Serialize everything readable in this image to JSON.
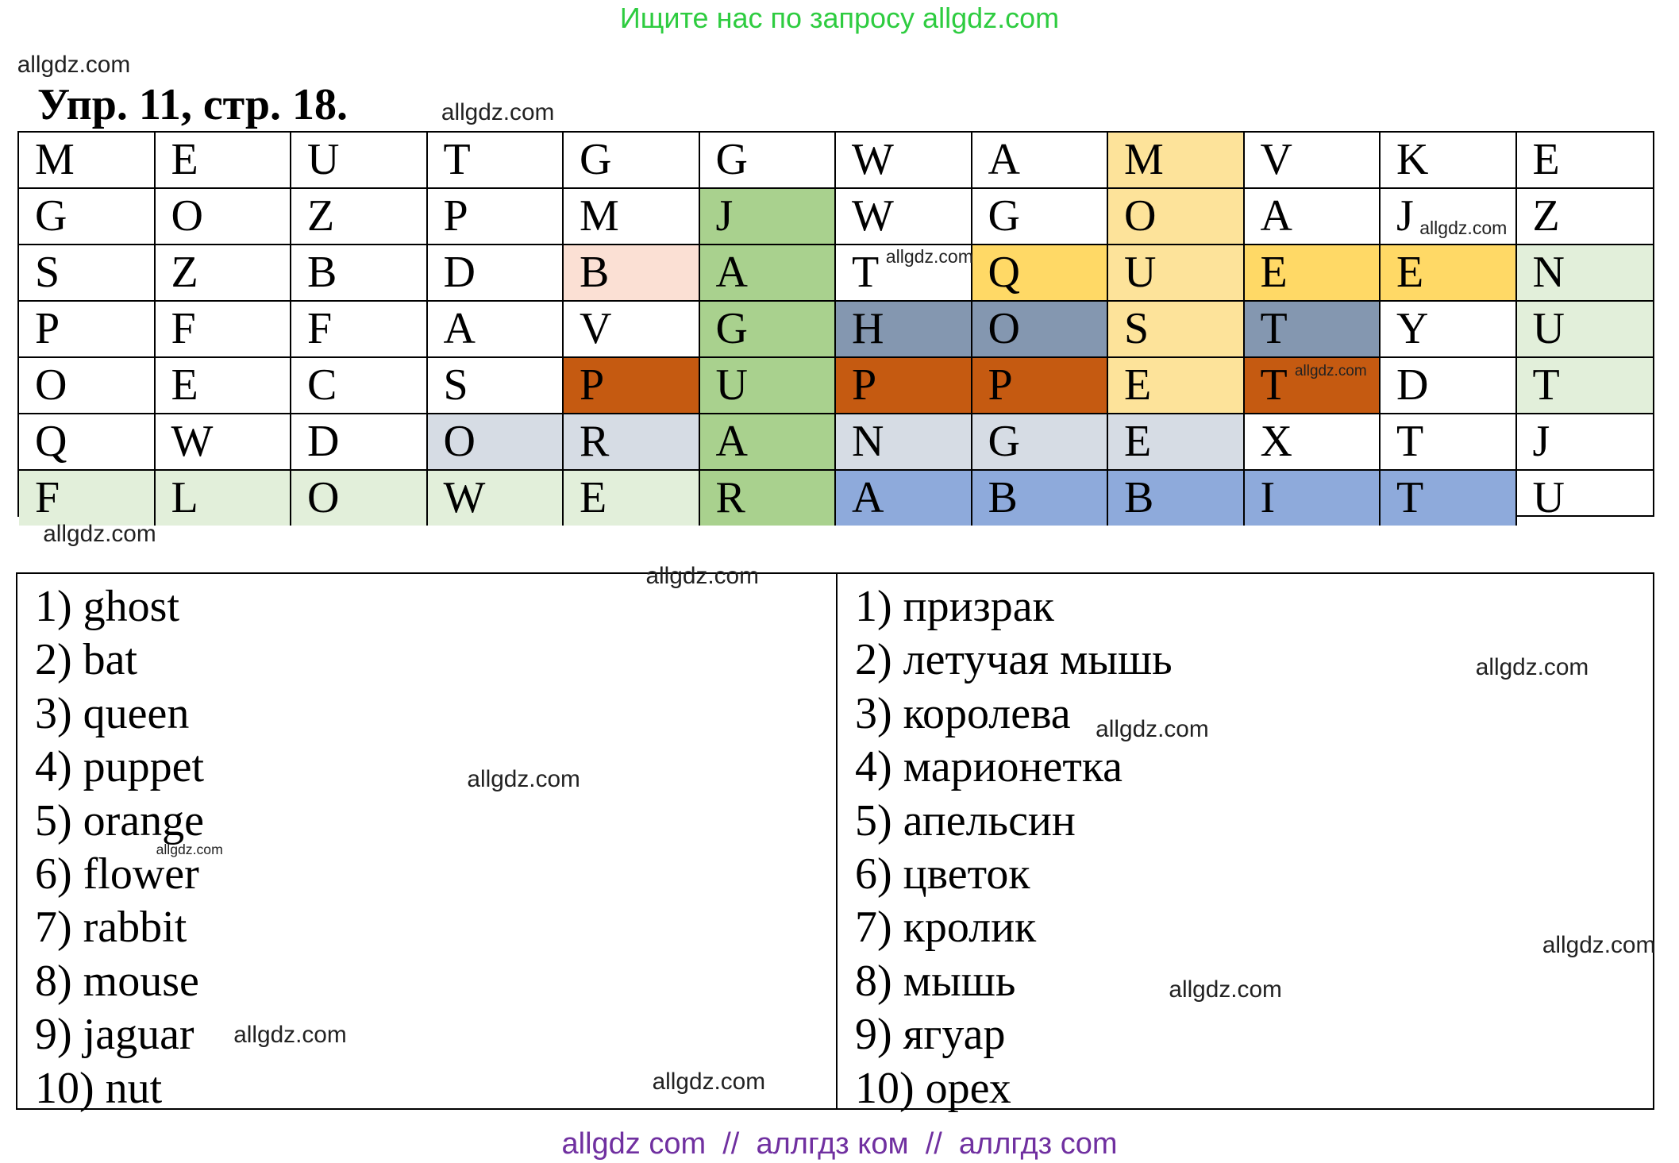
{
  "header": {
    "banner": "Ищите нас по запросу allgdz.com",
    "title": "Упр. 11, стр. 18."
  },
  "grid": {
    "rows": [
      [
        "M",
        "E",
        "U",
        "T",
        "G",
        "G",
        "W",
        "A",
        "M",
        "V",
        "K",
        "E"
      ],
      [
        "G",
        "O",
        "Z",
        "P",
        "M",
        "J",
        "W",
        "G",
        "O",
        "A",
        "J",
        "Z"
      ],
      [
        "S",
        "Z",
        "B",
        "D",
        "B",
        "A",
        "T",
        "Q",
        "U",
        "E",
        "E",
        "N"
      ],
      [
        "P",
        "F",
        "F",
        "A",
        "V",
        "G",
        "H",
        "O",
        "S",
        "T",
        "Y",
        "U"
      ],
      [
        "O",
        "E",
        "C",
        "S",
        "P",
        "U",
        "P",
        "P",
        "E",
        "T",
        "D",
        "T"
      ],
      [
        "Q",
        "W",
        "D",
        "O",
        "R",
        "A",
        "N",
        "G",
        "E",
        "X",
        "T",
        "J"
      ],
      [
        "F",
        "L",
        "O",
        "W",
        "E",
        "R",
        "A",
        "B",
        "B",
        "I",
        "T",
        "U"
      ]
    ]
  },
  "words": {
    "english": [
      "1) ghost",
      "2) bat",
      "3) queen",
      "4) puppet",
      "5) orange",
      "6) flower",
      "7) rabbit",
      "8) mouse",
      "9) jaguar",
      "10) nut"
    ],
    "russian": [
      "1) призрак",
      "2) летучая мышь",
      "3) королева",
      "4) марионетка",
      "5) апельсин",
      "6) цветок",
      "7) кролик",
      "8) мышь",
      "9) ягуар",
      "10) орех"
    ]
  },
  "watermarks": [
    "allgdz.com",
    "allgdz.com",
    "allgdz.com",
    "allgdz.com",
    "allgdz.com",
    "allgdz.com",
    "allgdz.com",
    "allgdz.com",
    "allgdz.com",
    "allgdz.com",
    "allgdz.com",
    "allgdz.com",
    "allgdz.com",
    "allgdz.com",
    "allgdz.com"
  ],
  "footer": "allgdz com  //  аллгдз ком  //  аллгдз com"
}
